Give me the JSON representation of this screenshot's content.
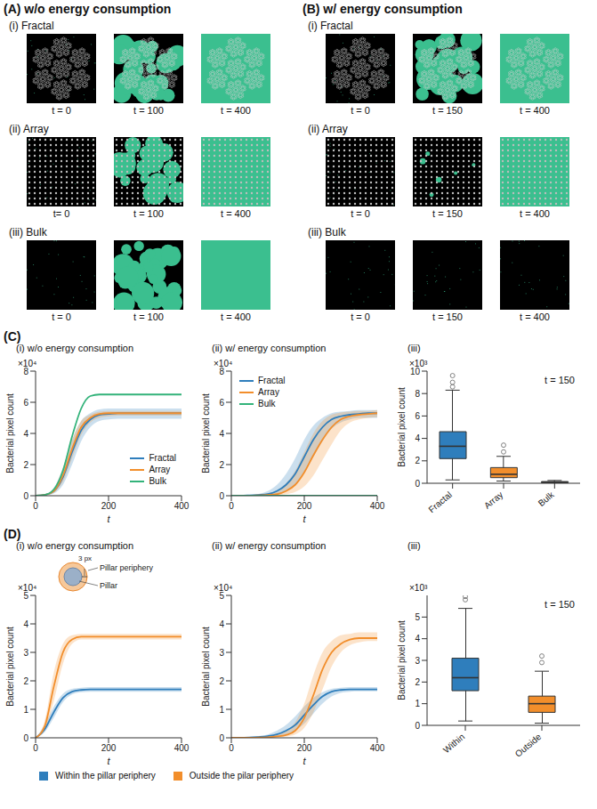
{
  "figure": {
    "A": {
      "letter": "(A)",
      "title": "w/o energy consumption",
      "rows": [
        {
          "label": "(i) Fractal",
          "times": [
            "t = 0",
            "t = 100",
            "t = 400"
          ]
        },
        {
          "label": "(ii) Array",
          "times": [
            "t= 0",
            "t = 100",
            "t = 400"
          ]
        },
        {
          "label": "(iii) Bulk",
          "times": [
            "t = 0",
            "t = 100",
            "t = 400"
          ]
        }
      ]
    },
    "B": {
      "letter": "(B)",
      "title": "w/ energy consumption",
      "rows": [
        {
          "label": "(i) Fractal",
          "times": [
            "t = 0",
            "t = 150",
            "t = 400"
          ]
        },
        {
          "label": "(ii) Array",
          "times": [
            "t = 0",
            "t = 150",
            "t = 400"
          ]
        },
        {
          "label": "(iii) Bulk",
          "times": [
            "t = 0",
            "t = 150",
            "t = 400"
          ]
        }
      ]
    },
    "C": {
      "letter": "(C)"
    },
    "D": {
      "letter": "(D)",
      "inset": [
        "3 px",
        "Pillar periphery",
        "Pillar"
      ]
    }
  },
  "chart_data": [
    {
      "type": "line",
      "title": "(i) w/o energy consumption",
      "x_label": "t",
      "y_label": "Bacterial pixel count",
      "annotations": [
        "×10⁴"
      ],
      "legend": "lower right",
      "xlim": [
        0,
        400
      ],
      "xticks": [
        0,
        200,
        400
      ],
      "ylim": [
        0,
        8
      ],
      "yticks": [
        0,
        2,
        4,
        6,
        8
      ],
      "x": [
        0,
        25,
        50,
        75,
        100,
        125,
        150,
        175,
        200,
        225,
        250,
        275,
        300,
        325,
        350,
        375,
        400
      ],
      "series": [
        {
          "name": "Fractal",
          "color": "#2f7ebc",
          "values": [
            0,
            0.05,
            0.3,
            1.2,
            2.8,
            4.2,
            4.9,
            5.2,
            5.25,
            5.3,
            5.3,
            5.3,
            5.3,
            5.3,
            5.3,
            5.3,
            5.3
          ],
          "lower": [
            0,
            0.02,
            0.15,
            0.7,
            2.0,
            3.5,
            4.4,
            4.8,
            4.9,
            4.95,
            4.95,
            4.95,
            4.95,
            4.95,
            4.95,
            4.95,
            4.95
          ],
          "upper": [
            0,
            0.1,
            0.5,
            1.8,
            3.6,
            4.8,
            5.3,
            5.55,
            5.6,
            5.6,
            5.6,
            5.6,
            5.6,
            5.6,
            5.6,
            5.6,
            5.6
          ]
        },
        {
          "name": "Array",
          "color": "#f28e2b",
          "values": [
            0,
            0.05,
            0.3,
            1.3,
            3.0,
            4.4,
            5.0,
            5.25,
            5.3,
            5.3,
            5.3,
            5.3,
            5.3,
            5.3,
            5.3,
            5.3,
            5.3
          ],
          "lower": [
            0,
            0.03,
            0.2,
            0.9,
            2.4,
            3.9,
            4.7,
            5.0,
            5.1,
            5.15,
            5.15,
            5.15,
            5.15,
            5.15,
            5.15,
            5.15,
            5.15
          ],
          "upper": [
            0,
            0.08,
            0.45,
            1.8,
            3.6,
            4.8,
            5.2,
            5.4,
            5.45,
            5.45,
            5.45,
            5.45,
            5.45,
            5.45,
            5.45,
            5.45,
            5.45
          ]
        },
        {
          "name": "Bulk",
          "color": "#33b37a",
          "values": [
            0,
            0.05,
            0.4,
            1.6,
            3.8,
            5.6,
            6.4,
            6.5,
            6.5,
            6.5,
            6.5,
            6.5,
            6.5,
            6.5,
            6.5,
            6.5,
            6.5
          ]
        }
      ]
    },
    {
      "type": "line",
      "title": "(ii) w/ energy consumption",
      "x_label": "t",
      "y_label": "Bacterial pixel count",
      "annotations": [
        "×10⁴"
      ],
      "legend": "upper left",
      "xlim": [
        0,
        400
      ],
      "xticks": [
        0,
        200,
        400
      ],
      "ylim": [
        0,
        8
      ],
      "yticks": [
        0,
        2,
        4,
        6,
        8
      ],
      "x": [
        0,
        25,
        50,
        75,
        100,
        125,
        150,
        175,
        200,
        225,
        250,
        275,
        300,
        325,
        350,
        375,
        400
      ],
      "series": [
        {
          "name": "Fractal",
          "color": "#2f7ebc",
          "values": [
            0,
            0,
            0.02,
            0.05,
            0.1,
            0.3,
            0.7,
            1.4,
            2.5,
            3.6,
            4.4,
            4.9,
            5.1,
            5.2,
            5.25,
            5.3,
            5.3
          ],
          "lower": [
            0,
            0,
            0,
            0.02,
            0.05,
            0.12,
            0.3,
            0.7,
            1.5,
            2.5,
            3.5,
            4.3,
            4.7,
            4.9,
            5.0,
            5.0,
            5.0
          ],
          "upper": [
            0,
            0,
            0.05,
            0.12,
            0.3,
            0.7,
            1.4,
            2.4,
            3.6,
            4.5,
            5.0,
            5.3,
            5.4,
            5.45,
            5.5,
            5.5,
            5.5
          ]
        },
        {
          "name": "Array",
          "color": "#f28e2b",
          "values": [
            0,
            0,
            0,
            0.02,
            0.05,
            0.1,
            0.3,
            0.7,
            1.5,
            2.6,
            3.6,
            4.4,
            4.9,
            5.1,
            5.2,
            5.25,
            5.3
          ],
          "lower": [
            0,
            0,
            0,
            0,
            0.01,
            0.03,
            0.1,
            0.25,
            0.6,
            1.3,
            2.3,
            3.3,
            4.2,
            4.7,
            4.9,
            5.0,
            5.05
          ],
          "upper": [
            0,
            0,
            0.02,
            0.06,
            0.15,
            0.35,
            0.8,
            1.6,
            2.8,
            4.0,
            4.8,
            5.2,
            5.35,
            5.4,
            5.45,
            5.45,
            5.5
          ]
        },
        {
          "name": "Bulk",
          "color": "#33b37a",
          "values": [
            0,
            0,
            0,
            0,
            0,
            0,
            0,
            0,
            0,
            0,
            0,
            0,
            0,
            0,
            0,
            0,
            0
          ]
        }
      ]
    },
    {
      "type": "box",
      "title": "(iii)",
      "y_label": "Bacterial pixel count",
      "annotations": [
        "×10³",
        "t = 150"
      ],
      "ylim": [
        0,
        10
      ],
      "yticks": [
        0,
        2,
        4,
        6,
        8,
        10
      ],
      "categories": [
        "Fractal",
        "Array",
        "Bulk"
      ],
      "colors": [
        "#2f7ebc",
        "#f28e2b",
        "#33b37a"
      ],
      "boxes": [
        {
          "min": 0.3,
          "q1": 2.2,
          "median": 3.3,
          "q3": 4.6,
          "max": 8.3,
          "outliers": [
            8.6,
            9.0,
            9.6
          ]
        },
        {
          "min": 0.2,
          "q1": 0.5,
          "median": 0.8,
          "q3": 1.4,
          "max": 2.4,
          "outliers": [
            2.8,
            3.4
          ]
        },
        {
          "min": 0,
          "q1": 0.05,
          "median": 0.1,
          "q3": 0.15,
          "max": 0.25,
          "outliers": []
        }
      ]
    },
    {
      "type": "line",
      "title": "(i) w/o energy consumption",
      "x_label": "t",
      "y_label": "Bacterial pixel count",
      "annotations": [
        "×10⁴"
      ],
      "legend": "bottom",
      "xlim": [
        0,
        400
      ],
      "xticks": [
        0,
        200,
        400
      ],
      "ylim": [
        0,
        5
      ],
      "yticks": [
        0,
        1,
        2,
        3,
        4,
        5
      ],
      "x": [
        0,
        25,
        50,
        75,
        100,
        125,
        150,
        175,
        200,
        225,
        250,
        275,
        300,
        325,
        350,
        375,
        400
      ],
      "series": [
        {
          "name": "Within the pillar periphery",
          "color": "#2f7ebc",
          "values": [
            0,
            0.3,
            0.9,
            1.4,
            1.62,
            1.68,
            1.7,
            1.7,
            1.7,
            1.7,
            1.7,
            1.7,
            1.7,
            1.7,
            1.7,
            1.7,
            1.7
          ],
          "lower": [
            0,
            0.2,
            0.7,
            1.25,
            1.52,
            1.6,
            1.62,
            1.62,
            1.62,
            1.62,
            1.62,
            1.62,
            1.62,
            1.62,
            1.62,
            1.62,
            1.62
          ],
          "upper": [
            0,
            0.45,
            1.1,
            1.55,
            1.72,
            1.76,
            1.78,
            1.78,
            1.78,
            1.78,
            1.78,
            1.78,
            1.78,
            1.78,
            1.78,
            1.78,
            1.78
          ]
        },
        {
          "name": "Outside the pilar periphery",
          "color": "#f28e2b",
          "values": [
            0,
            0.4,
            1.8,
            3.0,
            3.45,
            3.55,
            3.55,
            3.55,
            3.55,
            3.55,
            3.55,
            3.55,
            3.55,
            3.55,
            3.55,
            3.55,
            3.55
          ],
          "lower": [
            0,
            0.25,
            1.3,
            2.6,
            3.3,
            3.45,
            3.45,
            3.45,
            3.45,
            3.45,
            3.45,
            3.45,
            3.45,
            3.45,
            3.45,
            3.45,
            3.45
          ],
          "upper": [
            0,
            0.6,
            2.3,
            3.3,
            3.6,
            3.65,
            3.65,
            3.65,
            3.65,
            3.65,
            3.65,
            3.65,
            3.65,
            3.65,
            3.65,
            3.65,
            3.65
          ]
        }
      ]
    },
    {
      "type": "line",
      "title": "(ii) w/ energy consumption",
      "x_label": "t",
      "y_label": "Bacterial pixel count",
      "annotations": [
        "×10⁴"
      ],
      "xlim": [
        0,
        400
      ],
      "xticks": [
        0,
        200,
        400
      ],
      "ylim": [
        0,
        5
      ],
      "yticks": [
        0,
        1,
        2,
        3,
        4,
        5
      ],
      "x": [
        0,
        25,
        50,
        75,
        100,
        125,
        150,
        175,
        200,
        225,
        250,
        275,
        300,
        325,
        350,
        375,
        400
      ],
      "series": [
        {
          "name": "Within the pillar periphery",
          "color": "#2f7ebc",
          "values": [
            0,
            0,
            0.01,
            0.03,
            0.06,
            0.12,
            0.25,
            0.45,
            0.8,
            1.15,
            1.45,
            1.62,
            1.68,
            1.7,
            1.7,
            1.7,
            1.7
          ],
          "lower": [
            0,
            0,
            0,
            0.01,
            0.03,
            0.06,
            0.12,
            0.25,
            0.5,
            0.85,
            1.2,
            1.45,
            1.58,
            1.62,
            1.63,
            1.63,
            1.63
          ],
          "upper": [
            0,
            0,
            0.03,
            0.06,
            0.12,
            0.25,
            0.45,
            0.75,
            1.1,
            1.4,
            1.6,
            1.72,
            1.76,
            1.78,
            1.78,
            1.78,
            1.78
          ]
        },
        {
          "name": "Outside the pilar periphery",
          "color": "#f28e2b",
          "values": [
            0,
            0,
            0,
            0.01,
            0.02,
            0.05,
            0.1,
            0.25,
            0.7,
            1.5,
            2.4,
            3.0,
            3.3,
            3.45,
            3.5,
            3.5,
            3.5
          ],
          "lower": [
            0,
            0,
            0,
            0,
            0.01,
            0.02,
            0.05,
            0.12,
            0.35,
            0.9,
            1.7,
            2.5,
            3.0,
            3.25,
            3.35,
            3.4,
            3.4
          ],
          "upper": [
            0,
            0,
            0.01,
            0.03,
            0.06,
            0.12,
            0.25,
            0.55,
            1.2,
            2.2,
            3.0,
            3.4,
            3.6,
            3.65,
            3.7,
            3.7,
            3.7
          ]
        }
      ]
    },
    {
      "type": "box",
      "title": "(iii)",
      "y_label": "Bacterial pixel count",
      "annotations": [
        "×10³",
        "t = 150"
      ],
      "ylim": [
        0,
        6
      ],
      "yticks": [
        0,
        1,
        2,
        3,
        4,
        5
      ],
      "categories": [
        "Within",
        "Outside"
      ],
      "colors": [
        "#2f7ebc",
        "#f28e2b"
      ],
      "boxes": [
        {
          "min": 0.2,
          "q1": 1.6,
          "median": 2.2,
          "q3": 3.1,
          "max": 5.4,
          "outliers": [
            5.8,
            5.95
          ]
        },
        {
          "min": 0.1,
          "q1": 0.6,
          "median": 1.0,
          "q3": 1.35,
          "max": 2.5,
          "outliers": [
            2.9,
            3.2
          ]
        }
      ]
    }
  ]
}
